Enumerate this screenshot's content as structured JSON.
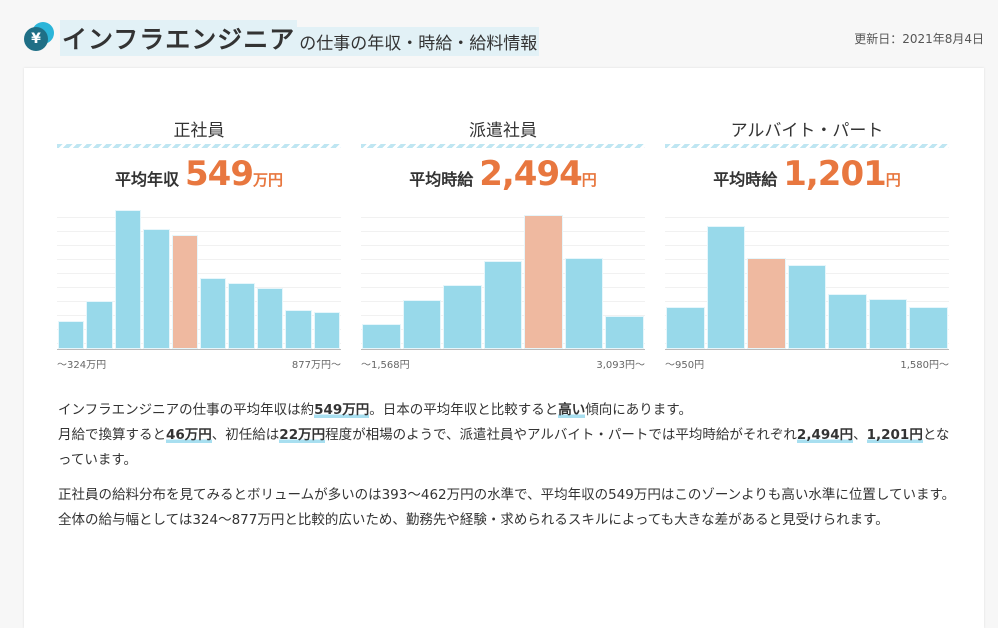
{
  "header": {
    "icon": "yen-coin-icon",
    "title_main": "インフラエンジニア",
    "title_sub": "の仕事の年収・時給・給料情報",
    "updated": "更新日：2021年8月4日"
  },
  "colors": {
    "bar": "#98d9ea",
    "highlight": "#efb9a0",
    "accent": "#e8773f"
  },
  "chart_data": [
    {
      "type": "bar",
      "title": "正社員",
      "avg_label": "平均年収",
      "avg_value": "549",
      "avg_unit": "万円",
      "values": [
        27,
        46,
        134,
        116,
        110,
        69,
        64,
        59,
        38,
        36
      ],
      "highlight_index": 4,
      "x_min_label": "～324万円",
      "x_max_label": "877万円～"
    },
    {
      "type": "bar",
      "title": "派遣社員",
      "avg_label": "平均時給",
      "avg_value": "2,494",
      "avg_unit": "円",
      "values": [
        24,
        47,
        62,
        85,
        129,
        88,
        32
      ],
      "highlight_index": 4,
      "x_min_label": "～1,568円",
      "x_max_label": "3,093円～"
    },
    {
      "type": "bar",
      "title": "アルバイト・パート",
      "avg_label": "平均時給",
      "avg_value": "1,201",
      "avg_unit": "円",
      "values": [
        41,
        119,
        88,
        81,
        53,
        48,
        41
      ],
      "highlight_index": 2,
      "x_min_label": "～950円",
      "x_max_label": "1,580円～"
    }
  ],
  "text": {
    "p1": [
      "インフラエンジニアの仕事の平均年収は約",
      "549万円",
      "。日本の平均年収と比較すると",
      "高い",
      "傾向にあります。"
    ],
    "p1b": [
      "月給で換算すると",
      "46万円",
      "、初任給は",
      "22万円",
      "程度が相場のようで、派遣社員やアルバイト・パートでは平均時給がそれぞれ",
      "2,494円",
      "、",
      "1,201円",
      "となっています。"
    ],
    "p2": "正社員の給料分布を見てみるとボリュームが多いのは393～462万円の水準で、平均年収の549万円はこのゾーンよりも高い水準に位置しています。",
    "p3": "全体の給与幅としては324～877万円と比較的広いため、勤務先や経験・求められるスキルによっても大きな差があると見受けられます。"
  }
}
